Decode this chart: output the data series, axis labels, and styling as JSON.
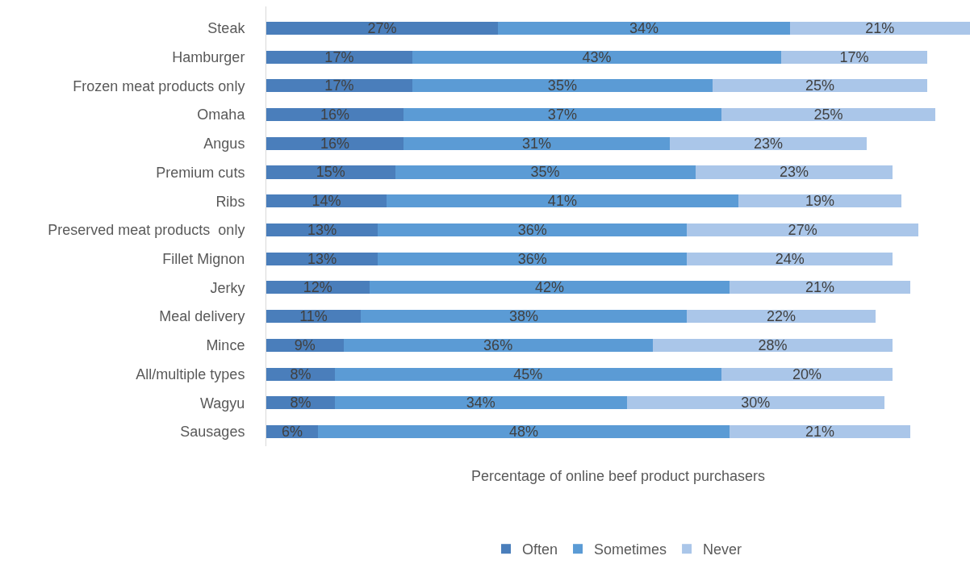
{
  "chart_data": {
    "type": "bar",
    "orientation": "horizontal",
    "stacked": true,
    "tick_labels": "y",
    "legend": "bottom",
    "xlabel": "Percentage of online beef product purchasers",
    "categories": [
      "Steak",
      "Hamburger",
      "Frozen meat products only",
      "Omaha",
      "Angus",
      "Premium cuts",
      "Ribs",
      "Preserved meat products  only",
      "Fillet Mignon",
      "Jerky",
      "Meal delivery",
      "Mince",
      "All/multiple types",
      "Wagyu",
      "Sausages"
    ],
    "series": [
      {
        "name": "Often",
        "color": "#4a7ebb",
        "values": [
          27,
          17,
          17,
          16,
          16,
          15,
          14,
          13,
          13,
          12,
          11,
          9,
          8,
          8,
          6
        ],
        "value_labels": [
          "27%",
          "17%",
          "17%",
          "16%",
          "16%",
          "15%",
          "14%",
          "13%",
          "13%",
          "12%",
          "11%",
          "9%",
          "8%",
          "8%",
          "6%"
        ]
      },
      {
        "name": "Sometimes",
        "color": "#5b9bd5",
        "values": [
          34,
          43,
          35,
          37,
          31,
          35,
          41,
          36,
          36,
          42,
          38,
          36,
          45,
          34,
          48
        ],
        "value_labels": [
          "34%",
          "43%",
          "35%",
          "37%",
          "31%",
          "35%",
          "41%",
          "36%",
          "36%",
          "42%",
          "38%",
          "36%",
          "45%",
          "34%",
          "48%"
        ]
      },
      {
        "name": "Never",
        "color": "#aac6e9",
        "values": [
          21,
          17,
          25,
          25,
          23,
          23,
          19,
          27,
          24,
          21,
          22,
          28,
          20,
          30,
          21
        ],
        "value_labels": [
          "21%",
          "17%",
          "25%",
          "25%",
          "23%",
          "23%",
          "19%",
          "27%",
          "24%",
          "21%",
          "22%",
          "28%",
          "20%",
          "30%",
          "21%"
        ]
      }
    ]
  }
}
